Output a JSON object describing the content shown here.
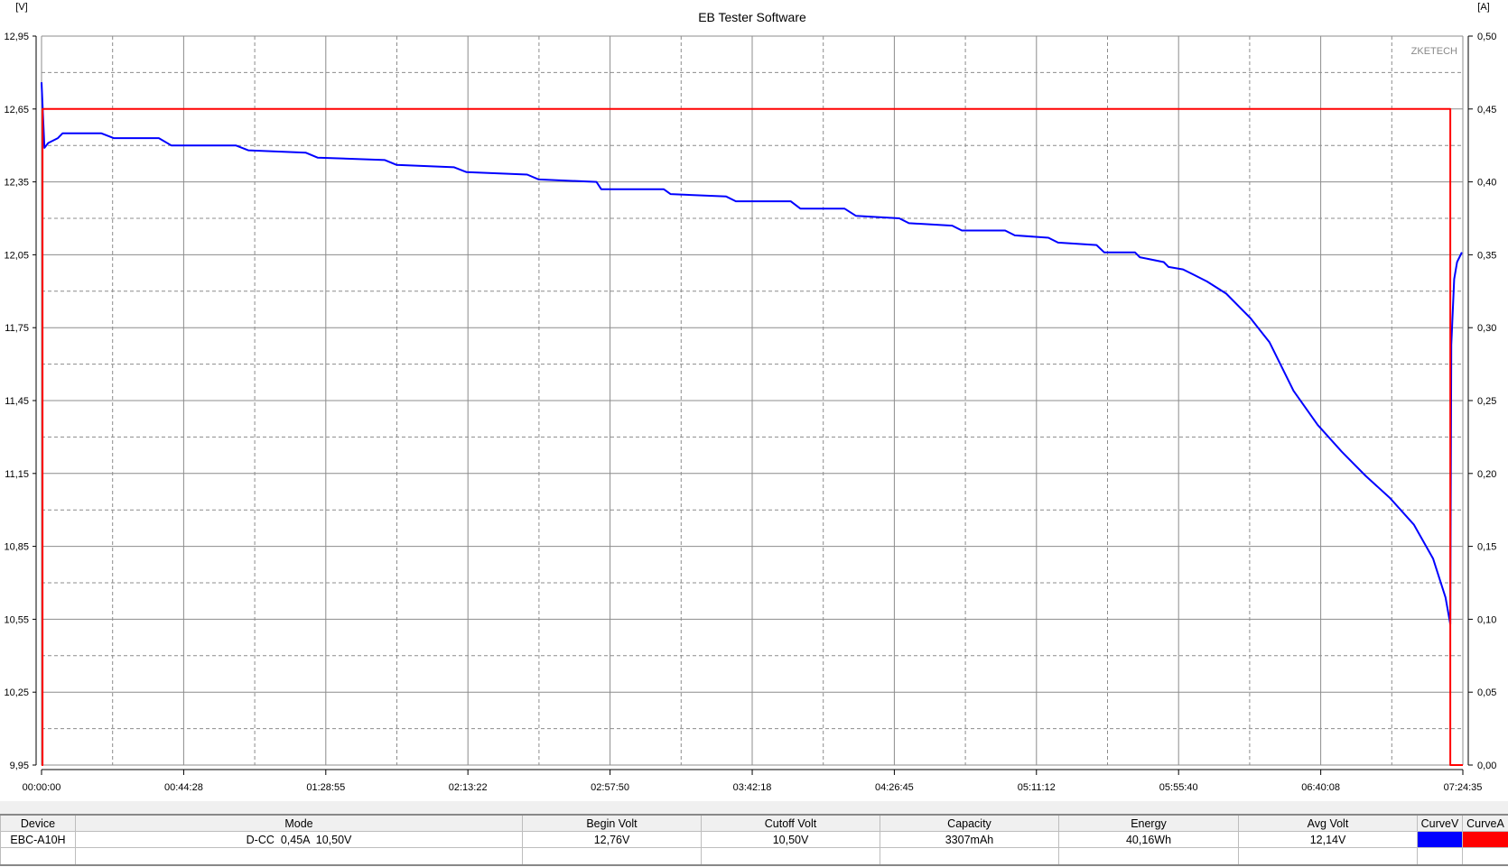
{
  "chart_data": {
    "type": "line",
    "title": "EB Tester Software",
    "watermark": "ZKETECH",
    "y_left_unit": "[V]",
    "y_right_unit": "[A]",
    "ylim_left": [
      9.95,
      12.95
    ],
    "ylim_right": [
      0.0,
      0.5
    ],
    "xlim": [
      "00:00:00",
      "07:24:35"
    ],
    "x_ticks": [
      "00:00:00",
      "00:44:28",
      "01:28:55",
      "02:13:22",
      "02:57:50",
      "03:42:18",
      "04:26:45",
      "05:11:12",
      "05:55:40",
      "06:40:08",
      "07:24:35"
    ],
    "y_left_ticks": [
      "12,95",
      "12,65",
      "12,35",
      "12,05",
      "11,75",
      "11,45",
      "11,15",
      "10,85",
      "10,55",
      "10,25",
      "9,95"
    ],
    "y_right_ticks": [
      "0,50",
      "0,45",
      "0,40",
      "0,35",
      "0,30",
      "0,25",
      "0,20",
      "0,15",
      "0,10",
      "0,05",
      "0,00"
    ],
    "grid": true,
    "series": [
      {
        "name": "CurveV",
        "axis": "left",
        "color": "#0000ff",
        "points": [
          [
            "00:00:00",
            12.76
          ],
          [
            "00:00:54",
            12.49
          ],
          [
            "00:02:06",
            12.51
          ],
          [
            "00:05:07",
            12.53
          ],
          [
            "00:06:37",
            12.55
          ],
          [
            "00:18:39",
            12.55
          ],
          [
            "00:22:34",
            12.53
          ],
          [
            "00:36:42",
            12.53
          ],
          [
            "00:40:36",
            12.5
          ],
          [
            "01:00:46",
            12.5
          ],
          [
            "01:04:40",
            12.48
          ],
          [
            "01:22:43",
            12.47
          ],
          [
            "01:26:20",
            12.45
          ],
          [
            "01:47:23",
            12.44
          ],
          [
            "01:51:00",
            12.42
          ],
          [
            "02:09:03",
            12.41
          ],
          [
            "02:12:57",
            12.39
          ],
          [
            "02:31:54",
            12.38
          ],
          [
            "02:35:31",
            12.36
          ],
          [
            "02:53:34",
            12.35
          ],
          [
            "02:55:04",
            12.32
          ],
          [
            "03:14:37",
            12.32
          ],
          [
            "03:16:43",
            12.3
          ],
          [
            "03:34:10",
            12.29
          ],
          [
            "03:37:11",
            12.27
          ],
          [
            "03:54:19",
            12.27
          ],
          [
            "03:57:20",
            12.24
          ],
          [
            "04:11:10",
            12.24
          ],
          [
            "04:14:47",
            12.21
          ],
          [
            "04:28:19",
            12.2
          ],
          [
            "04:31:19",
            12.18
          ],
          [
            "04:44:51",
            12.17
          ],
          [
            "04:47:52",
            12.15
          ],
          [
            "05:01:24",
            12.15
          ],
          [
            "05:04:25",
            12.13
          ],
          [
            "05:14:56",
            12.12
          ],
          [
            "05:17:57",
            12.1
          ],
          [
            "05:29:59",
            12.09
          ],
          [
            "05:32:23",
            12.06
          ],
          [
            "05:42:01",
            12.06
          ],
          [
            "05:43:31",
            12.04
          ],
          [
            "05:51:02",
            12.02
          ],
          [
            "05:52:32",
            12.0
          ],
          [
            "05:57:03",
            11.99
          ],
          [
            "06:00:03",
            11.97
          ],
          [
            "06:04:34",
            11.94
          ],
          [
            "06:10:35",
            11.89
          ],
          [
            "06:18:06",
            11.79
          ],
          [
            "06:24:07",
            11.69
          ],
          [
            "06:31:38",
            11.49
          ],
          [
            "06:39:10",
            11.35
          ],
          [
            "06:46:41",
            11.24
          ],
          [
            "06:54:12",
            11.14
          ],
          [
            "07:01:43",
            11.05
          ],
          [
            "07:09:14",
            10.94
          ],
          [
            "07:15:15",
            10.8
          ],
          [
            "07:19:10",
            10.64
          ],
          [
            "07:20:40",
            10.53
          ],
          [
            "07:20:58",
            11.68
          ],
          [
            "07:21:52",
            11.95
          ],
          [
            "07:22:46",
            12.02
          ],
          [
            "07:24:17",
            12.06
          ]
        ]
      },
      {
        "name": "CurveA",
        "axis": "right",
        "color": "#ff0000",
        "points": [
          [
            "00:00:00",
            0.0
          ],
          [
            "00:00:18",
            0.0
          ],
          [
            "00:00:18",
            0.45
          ],
          [
            "07:20:40",
            0.45
          ],
          [
            "07:20:40",
            0.0
          ],
          [
            "07:24:35",
            0.0
          ]
        ]
      }
    ]
  },
  "summary_table": {
    "headers": [
      "Device",
      "Mode",
      "Begin Volt",
      "Cutoff Volt",
      "Capacity",
      "Energy",
      "Avg Volt",
      "CurveV",
      "CurveA"
    ],
    "row": [
      "EBC-A10H",
      "D-CC  0,45A  10,50V",
      "12,76V",
      "10,50V",
      "3307mAh",
      "40,16Wh",
      "12,14V"
    ],
    "curve_colors": {
      "CurveV": "#0000ff",
      "CurveA": "#ff0000"
    }
  }
}
